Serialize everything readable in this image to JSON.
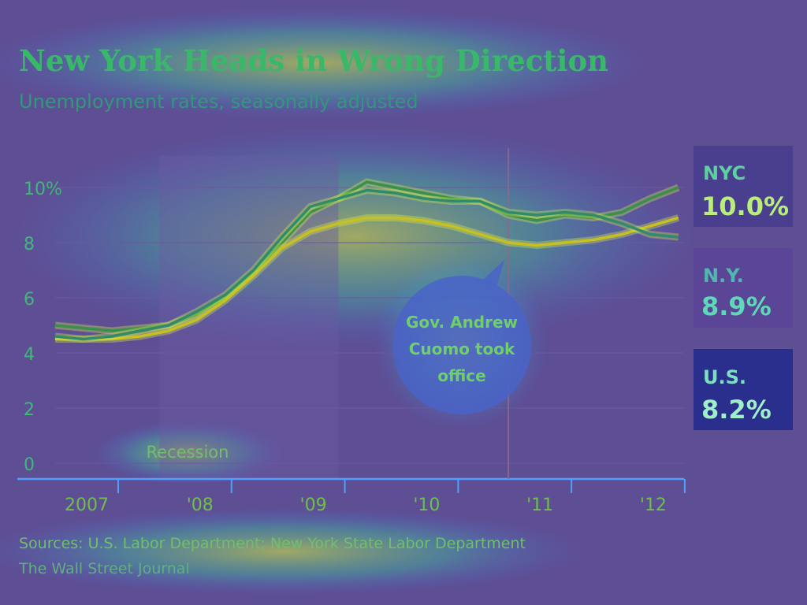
{
  "header": {
    "title": "New York Heads in Wrong Direction",
    "subtitle": "Unemployment rates, seasonally adjusted"
  },
  "footer": {
    "sources": "Sources: U.S. Labor Department; New York State Labor Department",
    "credit": "The Wall Street Journal"
  },
  "chart_data": {
    "type": "line",
    "title": "New York Heads in Wrong Direction",
    "subtitle": "Unemployment rates, seasonally adjusted",
    "xlim": [
      2007.0,
      2012.55
    ],
    "ylim": [
      0,
      10
    ],
    "y_ticks": [
      0,
      2,
      4,
      6,
      8,
      10
    ],
    "y_tick_labels": [
      "0",
      "2",
      "4",
      "6",
      "8",
      "10%"
    ],
    "x_tick_values": [
      2007.0,
      2008.0,
      2009.0,
      2010.0,
      2011.0,
      2012.0
    ],
    "x_tick_labels": [
      "2007",
      "'08",
      "'09",
      "'10",
      "'11",
      "'12"
    ],
    "grid": true,
    "recession": {
      "label": "Recession",
      "start": 2007.92,
      "end": 2009.5
    },
    "annotation": {
      "text": "Gov. Andrew Cuomo took office",
      "x": 2011.0
    },
    "series": [
      {
        "name": "NYC",
        "end_label": "10.0%",
        "color": "#3a8f4a",
        "x": [
          2007.0,
          2007.25,
          2007.5,
          2007.75,
          2008.0,
          2008.25,
          2008.5,
          2008.75,
          2009.0,
          2009.25,
          2009.5,
          2009.75,
          2010.0,
          2010.25,
          2010.5,
          2010.75,
          2011.0,
          2011.25,
          2011.5,
          2011.75,
          2012.0,
          2012.25,
          2012.5
        ],
        "values": [
          5.0,
          4.9,
          4.8,
          4.9,
          5.0,
          5.4,
          6.0,
          6.9,
          8.0,
          9.1,
          9.6,
          10.2,
          10.0,
          9.8,
          9.6,
          9.5,
          9.0,
          8.8,
          9.0,
          8.9,
          9.1,
          9.6,
          10.0
        ]
      },
      {
        "name": "N.Y.",
        "end_label": "8.9%",
        "color": "#c8c020",
        "x": [
          2007.0,
          2007.25,
          2007.5,
          2007.75,
          2008.0,
          2008.25,
          2008.5,
          2008.75,
          2009.0,
          2009.25,
          2009.5,
          2009.75,
          2010.0,
          2010.25,
          2010.5,
          2010.75,
          2011.0,
          2011.25,
          2011.5,
          2011.75,
          2012.0,
          2012.25,
          2012.5
        ],
        "values": [
          4.5,
          4.5,
          4.5,
          4.6,
          4.8,
          5.2,
          5.9,
          6.8,
          7.8,
          8.4,
          8.7,
          8.9,
          8.9,
          8.8,
          8.6,
          8.3,
          8.0,
          7.9,
          8.0,
          8.1,
          8.3,
          8.6,
          8.9
        ]
      },
      {
        "name": "U.S.",
        "end_label": "8.2%",
        "color": "#2f8b6a",
        "x": [
          2007.0,
          2007.25,
          2007.5,
          2007.75,
          2008.0,
          2008.25,
          2008.5,
          2008.75,
          2009.0,
          2009.25,
          2009.5,
          2009.75,
          2010.0,
          2010.25,
          2010.5,
          2010.75,
          2011.0,
          2011.25,
          2011.5,
          2011.75,
          2012.0,
          2012.25,
          2012.5
        ],
        "values": [
          4.6,
          4.5,
          4.6,
          4.8,
          5.0,
          5.5,
          6.1,
          7.0,
          8.2,
          9.3,
          9.6,
          9.9,
          9.8,
          9.6,
          9.5,
          9.5,
          9.1,
          9.0,
          9.1,
          9.0,
          8.7,
          8.3,
          8.2
        ]
      }
    ]
  },
  "colors": {
    "background": "#5e4f94",
    "title": "#39b86a",
    "axis": "#4fa0ff",
    "grid": "#6a5aa0",
    "legend_nyc_bg": "#4a3f8e",
    "legend_ny_bg": "#5a4596",
    "legend_us_bg": "#2a2f8e"
  }
}
